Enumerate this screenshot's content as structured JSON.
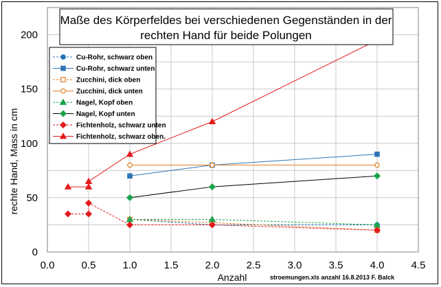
{
  "chart_data": {
    "type": "scatter",
    "title_lines": [
      "Maße des Körperfeldes bei verschiedenen Gegenständen in der",
      "rechten Hand für beide Polungen"
    ],
    "xlabel": "Anzahl",
    "ylabel": "rechte Hand,  Mass in cm",
    "footnote": "stroemungen.xls anzahl   16.8.2013 F. Balck",
    "xlim": [
      0.0,
      4.5
    ],
    "ylim": [
      0,
      225
    ],
    "x_ticks": [
      "0.0",
      "0.5",
      "1.0",
      "1.5",
      "2.0",
      "2.5",
      "3.0",
      "3.5",
      "4.0",
      "4.5"
    ],
    "y_ticks": [
      "0",
      "50",
      "100",
      "150",
      "200"
    ],
    "grid": true,
    "legend_position": "top-left",
    "series": [
      {
        "name": "Cu-Rohr, schwarz oben",
        "color": "#1f6fb2",
        "marker": "circle",
        "filled": true,
        "dashed": true,
        "points": [
          [
            1.0,
            30
          ],
          [
            2.0,
            25
          ],
          [
            4.0,
            25
          ]
        ]
      },
      {
        "name": "Cu-Rohr, schwarz unten",
        "color": "#2e75b6",
        "marker": "square",
        "filled": true,
        "dashed": false,
        "points": [
          [
            1.0,
            70
          ],
          [
            2.0,
            80
          ],
          [
            4.0,
            90
          ]
        ]
      },
      {
        "name": "Zucchini, dick oben",
        "color": "#e07b22",
        "marker": "square",
        "filled": false,
        "dashed": true,
        "points": [
          [
            1.0,
            30
          ],
          [
            2.0,
            27
          ],
          [
            4.0,
            20
          ]
        ]
      },
      {
        "name": "Zucchini, dick unten",
        "color": "#e07b22",
        "marker": "circle",
        "filled": false,
        "dashed": false,
        "points": [
          [
            1.0,
            80
          ],
          [
            2.0,
            80
          ],
          [
            4.0,
            80
          ]
        ]
      },
      {
        "name": "Nagel, Kopf oben",
        "color": "#1aa34a",
        "marker": "triangle",
        "filled": true,
        "dashed": true,
        "points": [
          [
            1.0,
            30
          ],
          [
            2.0,
            30
          ],
          [
            4.0,
            25
          ]
        ]
      },
      {
        "name": "Nagel, Kopf unten",
        "color": "#1aa34a",
        "marker": "diamond",
        "filled": true,
        "dashed": false,
        "line_color": "#000000",
        "points": [
          [
            1.0,
            50
          ],
          [
            2.0,
            60
          ],
          [
            4.0,
            70
          ]
        ]
      },
      {
        "name": "Fichtenholz, schwarz unten",
        "color": "#e31a1c",
        "marker": "diamond",
        "filled": true,
        "dashed": true,
        "points": [
          [
            0.25,
            35
          ],
          [
            0.5,
            35
          ],
          [
            0.5,
            45
          ],
          [
            1.0,
            25
          ],
          [
            2.0,
            25
          ],
          [
            4.0,
            20
          ]
        ]
      },
      {
        "name": "Fichtenholz, schwarz oben.",
        "color": "#e31a1c",
        "marker": "triangle",
        "filled": true,
        "dashed": false,
        "points": [
          [
            0.25,
            60
          ],
          [
            0.5,
            60
          ],
          [
            0.5,
            65
          ],
          [
            1.0,
            90
          ],
          [
            2.0,
            120
          ],
          [
            4.0,
            195
          ]
        ]
      }
    ]
  }
}
